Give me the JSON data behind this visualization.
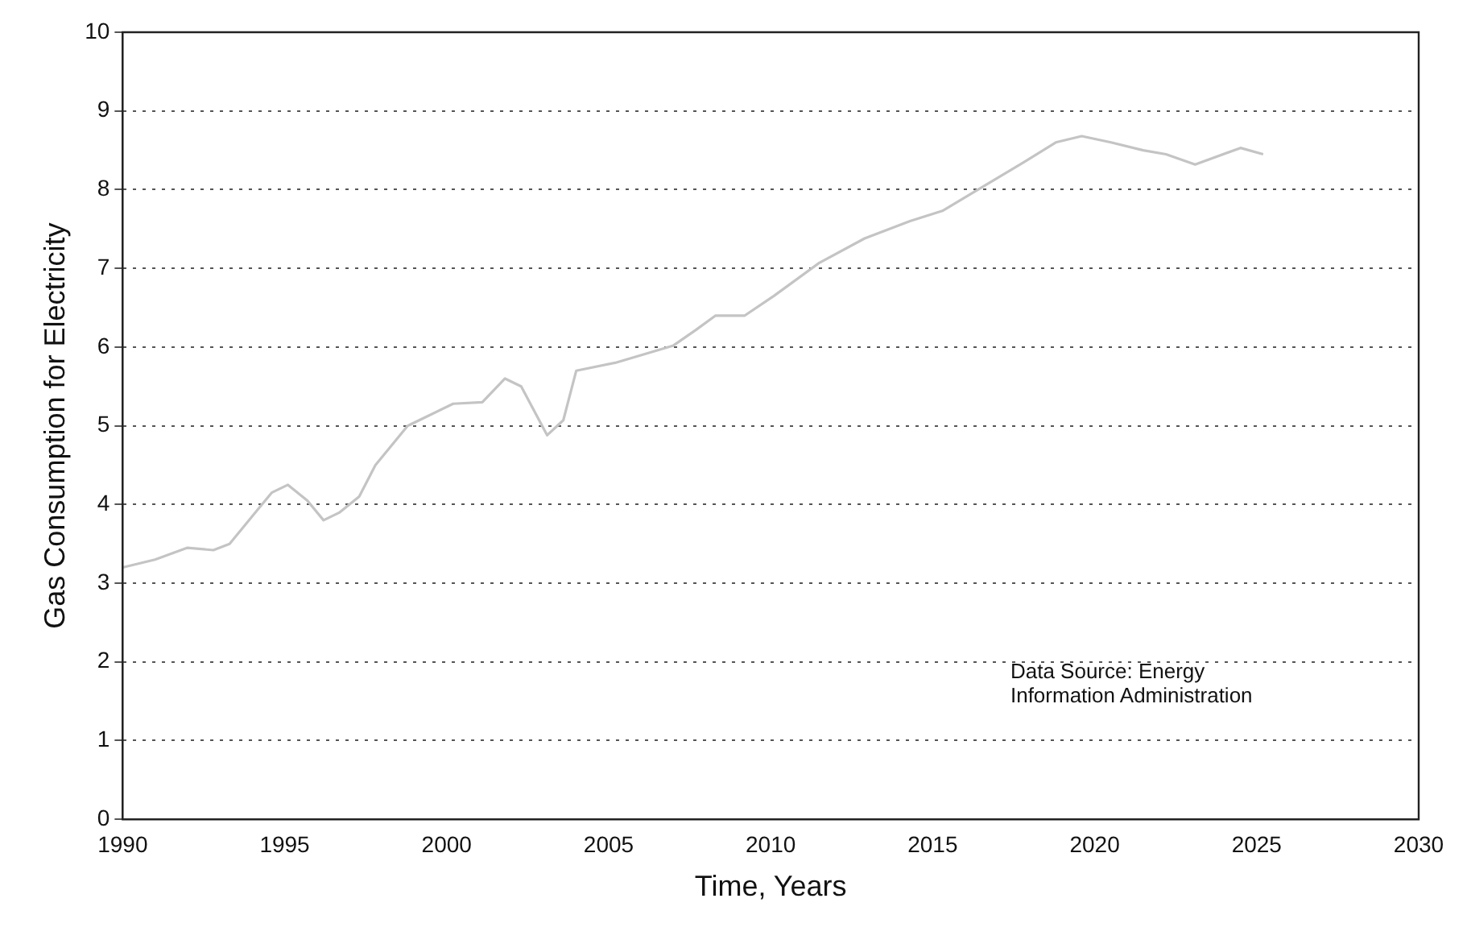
{
  "chart_data": {
    "type": "line",
    "xlabel": "Time, Years",
    "ylabel": "Gas Consumption for Electricity",
    "x": [
      1990,
      1991,
      1992,
      1992.8,
      1993.3,
      1994.1,
      1994.6,
      1995.1,
      1995.7,
      1996.2,
      1996.7,
      1997.3,
      1997.8,
      1998.8,
      2000.2,
      2001.1,
      2001.8,
      2002.3,
      2003.1,
      2003.6,
      2004,
      2005.2,
      2007,
      2007.7,
      2008.3,
      2009.2,
      2010.1,
      2011.5,
      2012.9,
      2014.3,
      2015.3,
      2016.4,
      2017.7,
      2018.8,
      2019.6,
      2020.5,
      2021.5,
      2022.2,
      2023.1,
      2024.5,
      2025.2
    ],
    "series": [
      {
        "color": "#c4c4c4",
        "values": [
          3.2,
          3.3,
          3.45,
          3.42,
          3.5,
          3.9,
          4.15,
          4.25,
          4.05,
          3.8,
          3.9,
          4.1,
          4.5,
          5.0,
          5.28,
          5.3,
          5.6,
          5.5,
          4.88,
          5.07,
          5.7,
          5.8,
          6.02,
          6.22,
          6.4,
          6.4,
          6.65,
          7.07,
          7.38,
          7.6,
          7.73,
          8.0,
          8.32,
          8.6,
          8.68,
          8.6,
          8.5,
          8.45,
          8.32,
          8.53,
          8.45
        ]
      }
    ],
    "xlim": [
      1990,
      2030
    ],
    "xticks": [
      1990,
      1995,
      2000,
      2005,
      2010,
      2015,
      2020,
      2025,
      2030
    ],
    "ylim": [
      0,
      10
    ],
    "yticks": [
      0,
      1,
      2,
      3,
      4,
      5,
      6,
      7,
      8,
      9,
      10
    ],
    "grid": "y",
    "line_style": "solid",
    "marker": "none",
    "legend": false,
    "annotations": [
      "Data Source: Energy\nInformation Administration"
    ]
  }
}
